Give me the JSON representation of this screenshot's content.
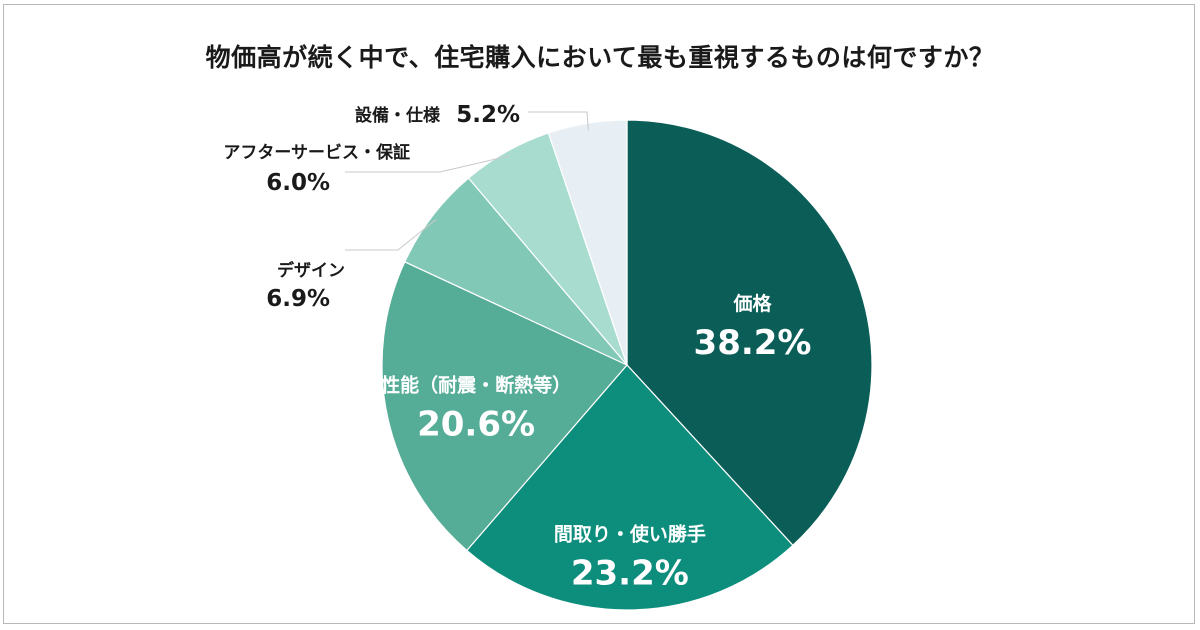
{
  "chart_data": {
    "type": "pie",
    "title": "物価高が続く中で、住宅購入において最も重視するものは何ですか？",
    "unit": "%",
    "start": "12 o'clock",
    "direction": "clockwise",
    "slices": [
      {
        "label": "価格",
        "value": 38.2,
        "display": "38.2%",
        "color": "#0b5d57"
      },
      {
        "label": "間取り・使い勝手",
        "value": 23.2,
        "display": "23.2%",
        "color": "#0d8d7c"
      },
      {
        "label": "性能（耐震・断熱等）",
        "value": 20.6,
        "display": "20.6%",
        "color": "#55ac97"
      },
      {
        "label": "デザイン",
        "value": 6.9,
        "display": "6.9%",
        "color": "#82c8b6"
      },
      {
        "label": "アフターサービス・保証",
        "value": 6.0,
        "display": "6.0%",
        "color": "#a8dccf"
      },
      {
        "label": "設備・仕様",
        "value": 5.2,
        "display": "5.2%",
        "color": "#e7eff4"
      }
    ]
  }
}
